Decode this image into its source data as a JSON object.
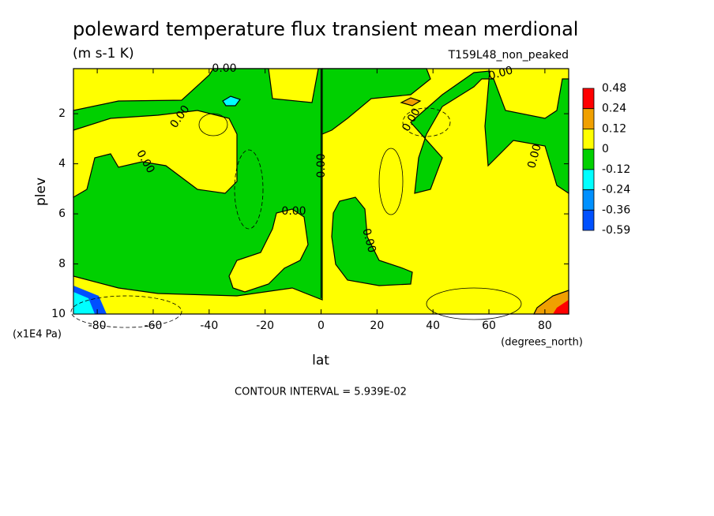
{
  "chart_data": {
    "type": "contour",
    "title": "poleward temperature flux transient mean merdional",
    "subtitle": "(m s-1 K)",
    "dataset": "T159L48_non_peaked",
    "x_label": "lat",
    "x_units": "(degrees_north)",
    "y_label": "plev",
    "y_units": "(x1E4 Pa)",
    "xlim": [
      -88.5,
      88.5
    ],
    "ylim": [
      10,
      0.2
    ],
    "xticks": [
      -80,
      -60,
      -40,
      -20,
      0,
      20,
      40,
      60,
      80
    ],
    "yticks": [
      2,
      4,
      6,
      8,
      10
    ],
    "colorbar": {
      "levels": [
        0.48,
        0.24,
        0.12,
        0,
        -0.12,
        -0.24,
        -0.36,
        -0.59
      ],
      "colors": [
        "#ff0000",
        "#f0a000",
        "#ffff00",
        "#00d000",
        "#00ffff",
        "#0090ff",
        "#0050ff"
      ]
    },
    "contour_labels": [
      "0.00",
      "0.00",
      "0.00",
      "0.00",
      "0.00",
      "0.00",
      "0.00",
      "0.00",
      "0.00"
    ],
    "note": "CONTOUR INTERVAL = 5.939E-02"
  }
}
